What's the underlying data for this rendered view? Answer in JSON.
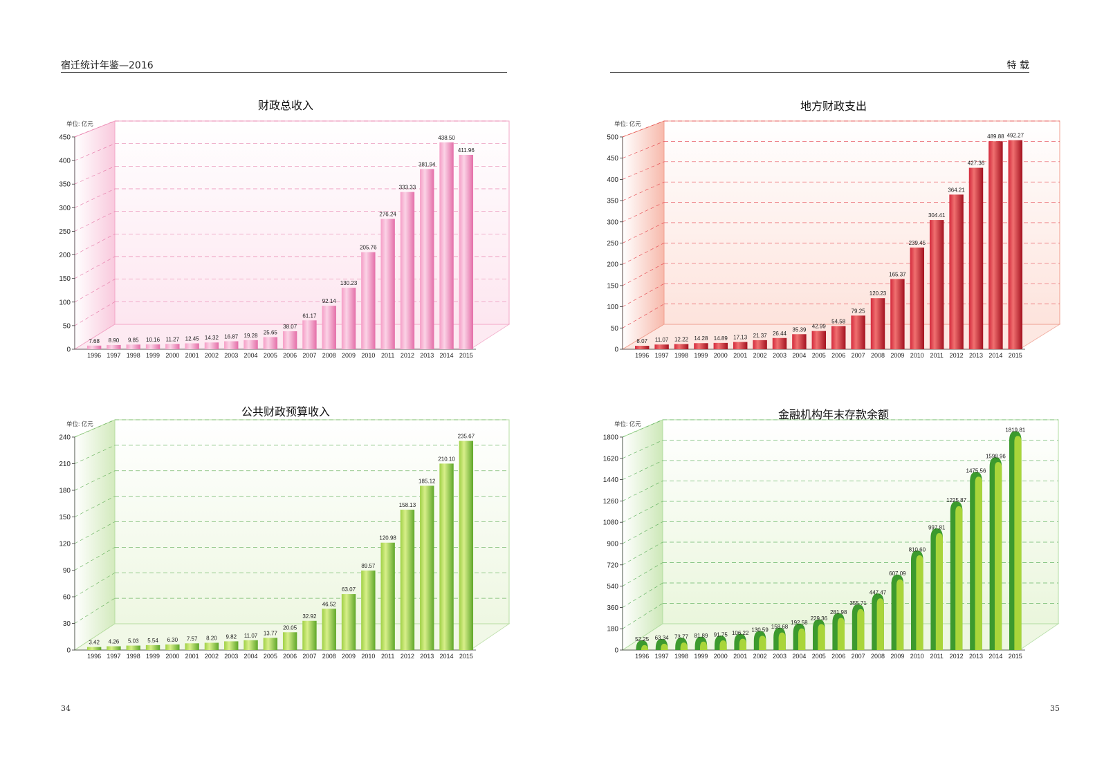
{
  "header": {
    "left_title": "宿迁统计年鉴—2016",
    "right_title": "特 载"
  },
  "page_numbers": {
    "left": "34",
    "right": "35"
  },
  "chart_data": [
    {
      "type": "bar",
      "title": "财政总收入",
      "unit": "单位: 亿元",
      "categories": [
        "1996",
        "1997",
        "1998",
        "1999",
        "2000",
        "2001",
        "2002",
        "2003",
        "2004",
        "2005",
        "2006",
        "2007",
        "2008",
        "2009",
        "2010",
        "2011",
        "2012",
        "2013",
        "2014",
        "2015"
      ],
      "values": [
        7.68,
        8.9,
        9.85,
        10.16,
        11.27,
        12.45,
        14.32,
        16.87,
        19.28,
        25.65,
        38.07,
        61.17,
        92.14,
        130.23,
        205.76,
        276.24,
        333.33,
        381.94,
        438.5,
        411.96
      ],
      "value_labels": [
        "7.68",
        "8.90",
        "9.85",
        "10.16",
        "11.27",
        "12.45",
        "14.32",
        "16.87",
        "19.28",
        "25.65",
        "38.07",
        "61.17",
        "92.14",
        "130.23",
        "205.76",
        "276.24",
        "333.33",
        "381.94",
        "438.50",
        "411.96"
      ],
      "ylim": [
        0,
        450
      ],
      "yticks": [
        0,
        50,
        100,
        150,
        200,
        250,
        300,
        350,
        400,
        450
      ],
      "grid": true,
      "colors": {
        "bar_light": "#fbd3e6",
        "bar_mid": "#f59dc6",
        "bar_dark": "#e46ea8",
        "wall": "#fde6f0",
        "wall_side": "#f9c9dd",
        "grid": "#e36a9e",
        "edge": "#f2a6c6"
      }
    },
    {
      "type": "bar",
      "title": "地方财政支出",
      "unit": "单位: 亿元",
      "categories": [
        "1996",
        "1997",
        "1998",
        "1999",
        "2000",
        "2001",
        "2002",
        "2003",
        "2004",
        "2005",
        "2006",
        "2007",
        "2008",
        "2009",
        "2010",
        "2011",
        "2012",
        "2013",
        "2014",
        "2015"
      ],
      "values": [
        8.07,
        11.07,
        12.22,
        14.28,
        14.89,
        17.13,
        21.37,
        26.44,
        35.39,
        42.99,
        54.58,
        79.25,
        120.23,
        165.37,
        239.45,
        304.41,
        364.21,
        427.36,
        489.88,
        492.27
      ],
      "value_labels": [
        "8.07",
        "11.07",
        "12.22",
        "14.28",
        "14.89",
        "17.13",
        "21.37",
        "26.44",
        "35.39",
        "42.99",
        "54.58",
        "79.25",
        "120.23",
        "165.37",
        "239.45",
        "304.41",
        "364.21",
        "427.36",
        "489.88",
        "492.27"
      ],
      "ylim": [
        0,
        500
      ],
      "yticks": [
        0,
        50,
        100,
        150,
        200,
        250,
        300,
        350,
        400,
        450,
        500
      ],
      "grid": true,
      "colors": {
        "bar_light": "#f07070",
        "bar_mid": "#d32a3c",
        "bar_dark": "#a3111f",
        "wall": "#fde3dc",
        "wall_side": "#f7b9ab",
        "grid": "#e2323c",
        "edge": "#f0a090"
      }
    },
    {
      "type": "bar",
      "title": "公共财政预算收入",
      "unit": "单位: 亿元",
      "categories": [
        "1996",
        "1997",
        "1998",
        "1999",
        "2000",
        "2001",
        "2002",
        "2003",
        "2004",
        "2005",
        "2006",
        "2007",
        "2008",
        "2009",
        "2010",
        "2011",
        "2012",
        "2013",
        "2014",
        "2015"
      ],
      "values": [
        3.42,
        4.26,
        5.03,
        5.54,
        6.3,
        7.57,
        8.2,
        9.82,
        11.07,
        13.77,
        20.05,
        32.92,
        46.52,
        63.07,
        89.57,
        120.98,
        158.13,
        185.12,
        210.1,
        235.67
      ],
      "value_labels": [
        "3.42",
        "4.26",
        "5.03",
        "5.54",
        "6.30",
        "7.57",
        "8.20",
        "9.82",
        "11.07",
        "13.77",
        "20.05",
        "32.92",
        "46.52",
        "63.07",
        "89.57",
        "120.98",
        "158.13",
        "185.12",
        "210.10",
        "235.67"
      ],
      "ylim": [
        0,
        240
      ],
      "yticks": [
        0,
        30,
        60,
        90,
        120,
        150,
        180,
        210,
        240
      ],
      "grid": true,
      "colors": {
        "bar_light": "#d8ef8a",
        "bar_mid": "#9fd046",
        "bar_dark": "#5fa72a",
        "wall": "#eef7e2",
        "wall_side": "#d3eabd",
        "grid": "#55a84a",
        "edge": "#b6dca0"
      }
    },
    {
      "type": "bar",
      "title": "金融机构年末存款余额",
      "unit": "单位: 亿元",
      "categories": [
        "1996",
        "1997",
        "1998",
        "1999",
        "2000",
        "2001",
        "2002",
        "2003",
        "2004",
        "2005",
        "2006",
        "2007",
        "2008",
        "2009",
        "2010",
        "2011",
        "2012",
        "2013",
        "2014",
        "2015"
      ],
      "values": [
        52.25,
        63.34,
        73.77,
        81.89,
        91.75,
        106.22,
        130.59,
        158.68,
        192.58,
        229.36,
        281.98,
        355.71,
        447.47,
        607.09,
        810.6,
        997.81,
        1225.87,
        1475.56,
        1598.96,
        1819.81
      ],
      "value_labels": [
        "52.25",
        "63.34",
        "73.77",
        "81.89",
        "91.75",
        "106.22",
        "130.59",
        "158.68",
        "192.58",
        "229.36",
        "281.98",
        "355.71",
        "447.47",
        "607.09",
        "810.60",
        "997.81",
        "1225.87",
        "1475.56",
        "1598.96",
        "1819.81"
      ],
      "ylim": [
        0,
        1800
      ],
      "yticks": [
        0,
        180,
        360,
        540,
        720,
        900,
        1080,
        1260,
        1440,
        1620,
        1800
      ],
      "grid": true,
      "colors": {
        "bar_light": "#d8ee5a",
        "bar_mid": "#a9d53a",
        "bar_dark": "#3c9a2e",
        "wall": "#eaf6dc",
        "wall_side": "#cde8b8",
        "grid": "#4aa64a",
        "edge": "#b0dca0"
      }
    }
  ]
}
